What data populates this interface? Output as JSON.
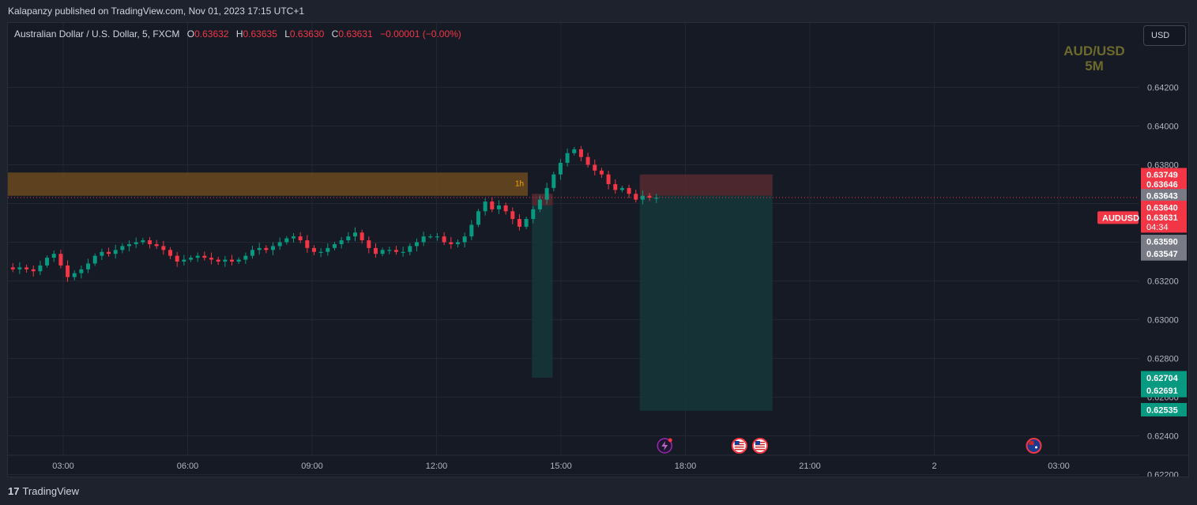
{
  "header": {
    "publisher": "Kalapanzy published on TradingView.com, Nov 01, 2023 17:15 UTC+1"
  },
  "legend": {
    "symbol": "Australian Dollar / U.S. Dollar, 5, FXCM",
    "open_key": "O",
    "open": "0.63632",
    "high_key": "H",
    "high": "0.63635",
    "low_key": "L",
    "low": "0.63630",
    "close_key": "C",
    "close": "0.63631",
    "change": "−0.00001 (−0.00%)"
  },
  "currency_button": "USD",
  "watermark": {
    "line1": "AUD/USD",
    "line2": "5M"
  },
  "footer": {
    "logo_glyph": "17",
    "brand": "TradingView"
  },
  "colors": {
    "up": "#089981",
    "down": "#f23645",
    "zone": "#6b4a1f",
    "stop": "#5b2a31",
    "target": "#15383a",
    "accent_grey": "#787b86"
  },
  "chart_data": {
    "type": "candlestick",
    "title": "",
    "xlabel": "",
    "ylabel": "",
    "ylim": [
      0.6212,
      0.6425
    ],
    "xlim": [
      0,
      140
    ],
    "grid": true,
    "x_unit": "time (hours, 5-minute bars)",
    "price_ticks": [
      "0.64200",
      "0.64000",
      "0.63800",
      "0.63600",
      "0.63400",
      "0.63200",
      "0.63000",
      "0.62800",
      "0.62600",
      "0.62400",
      "0.62200"
    ],
    "price_tick_values": [
      0.642,
      0.64,
      0.638,
      0.636,
      0.634,
      0.632,
      0.63,
      0.628,
      0.626,
      0.624,
      0.622
    ],
    "time_ticks": [
      "03:00",
      "06:00",
      "09:00",
      "12:00",
      "15:00",
      "18:00",
      "21:00",
      "2",
      "03:00"
    ],
    "time_tick_hours": [
      3,
      6,
      9,
      12,
      15,
      18,
      21,
      24,
      27
    ],
    "x_start_hour": 0.3,
    "close_path": [
      0.634,
      0.634,
      0.6338,
      0.634,
      0.6342,
      0.6342,
      0.6338,
      0.6328,
      0.6327,
      0.6326,
      0.6327,
      0.6326,
      0.6325,
      0.6328,
      0.6332,
      0.6334,
      0.6328,
      0.6322,
      0.6324,
      0.6326,
      0.6329,
      0.6333,
      0.6335,
      0.6334,
      0.6336,
      0.6338,
      0.6339,
      0.634,
      0.6341,
      0.6339,
      0.6338,
      0.6336,
      0.6333,
      0.633,
      0.6331,
      0.6332,
      0.6333,
      0.6332,
      0.6331,
      0.633,
      0.6331,
      0.633,
      0.6331,
      0.6333,
      0.6336,
      0.6337,
      0.6336,
      0.6338,
      0.634,
      0.6342,
      0.6343,
      0.6341,
      0.6337,
      0.6335,
      0.6335,
      0.6337,
      0.6339,
      0.6341,
      0.6343,
      0.6345,
      0.6341,
      0.6337,
      0.6334,
      0.6336,
      0.6336,
      0.6335,
      0.6335,
      0.6338,
      0.634,
      0.6343,
      0.6343,
      0.6343,
      0.634,
      0.6339,
      0.634,
      0.6343,
      0.6349,
      0.6356,
      0.6361,
      0.6357,
      0.6359,
      0.6356,
      0.6352,
      0.6348,
      0.6352,
      0.6357,
      0.6362,
      0.6368,
      0.6375,
      0.6381,
      0.6386,
      0.6388,
      0.6384,
      0.638,
      0.6377,
      0.6375,
      0.637,
      0.6367,
      0.6368,
      0.6365,
      0.6362,
      0.6364,
      0.6363,
      0.6363
    ],
    "zones": [
      {
        "label": "1h",
        "x0_hour": 0.0,
        "x1_hour": 14.2,
        "top": 0.6376,
        "bottom": 0.6364
      },
      {
        "label": "",
        "kind": "stop",
        "x0_hour": 14.3,
        "x1_hour": 14.8,
        "top": 0.6365,
        "bottom": 0.6359
      },
      {
        "label": "",
        "kind": "target",
        "x0_hour": 14.3,
        "x1_hour": 14.8,
        "top": 0.6359,
        "bottom": 0.627
      },
      {
        "label": "",
        "kind": "stop",
        "x0_hour": 16.9,
        "x1_hour": 20.1,
        "top": 0.6375,
        "bottom": 0.6364
      },
      {
        "label": "",
        "kind": "target",
        "x0_hour": 16.9,
        "x1_hour": 20.1,
        "top": 0.6364,
        "bottom": 0.6253
      }
    ],
    "price_tags": [
      {
        "label": "0.63749",
        "value": 0.63749,
        "color": "#f23645"
      },
      {
        "label": "0.63646",
        "value": 0.637,
        "color": "#f23645"
      },
      {
        "label": "0.63643",
        "value": 0.6364,
        "color": "#787b86"
      },
      {
        "label": "0.63640",
        "value": 0.6358,
        "color": "#f23645"
      },
      {
        "label": "0.63631",
        "value": 0.63527,
        "color": "#f23645",
        "sub": "04:34",
        "symbol": "AUDUSD"
      },
      {
        "label": "0.63590",
        "value": 0.63404,
        "color": "#787b86"
      },
      {
        "label": "0.63547",
        "value": 0.6334,
        "color": "#787b86"
      },
      {
        "label": "0.62704",
        "value": 0.627,
        "color": "#089981"
      },
      {
        "label": "0.62691",
        "value": 0.62634,
        "color": "#089981"
      },
      {
        "label": "0.62535",
        "value": 0.62535,
        "color": "#089981"
      }
    ],
    "current_price": 0.63631,
    "events": [
      {
        "hour": 17.5,
        "kind": "lightning"
      },
      {
        "hour": 19.3,
        "kind": "us-flag"
      },
      {
        "hour": 19.8,
        "kind": "us-flag"
      },
      {
        "hour": 26.4,
        "kind": "au-flag"
      }
    ]
  }
}
